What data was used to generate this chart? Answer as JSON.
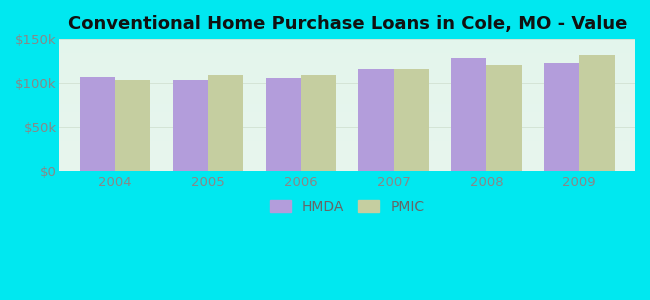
{
  "title": "Conventional Home Purchase Loans in Cole, MO - Value",
  "years": [
    2004,
    2005,
    2006,
    2007,
    2008,
    2009
  ],
  "hmda_values": [
    107000,
    103000,
    106000,
    116000,
    128000,
    123000
  ],
  "pmic_values": [
    103000,
    109000,
    109000,
    116000,
    120000,
    132000
  ],
  "hmda_color": "#b39ddb",
  "pmic_color": "#c5cea0",
  "background_outer": "#00e8f0",
  "background_inner_top": "#dff0e8",
  "background_inner_bottom": "#e8f5ee",
  "ylim": [
    0,
    150000
  ],
  "yticks": [
    0,
    50000,
    100000,
    150000
  ],
  "ytick_labels": [
    "$0",
    "$50k",
    "$100k",
    "$150k"
  ],
  "bar_width": 0.38,
  "legend_labels": [
    "HMDA",
    "PMIC"
  ],
  "title_fontsize": 13,
  "tick_fontsize": 9.5,
  "legend_fontsize": 10,
  "tick_color": "#888888"
}
